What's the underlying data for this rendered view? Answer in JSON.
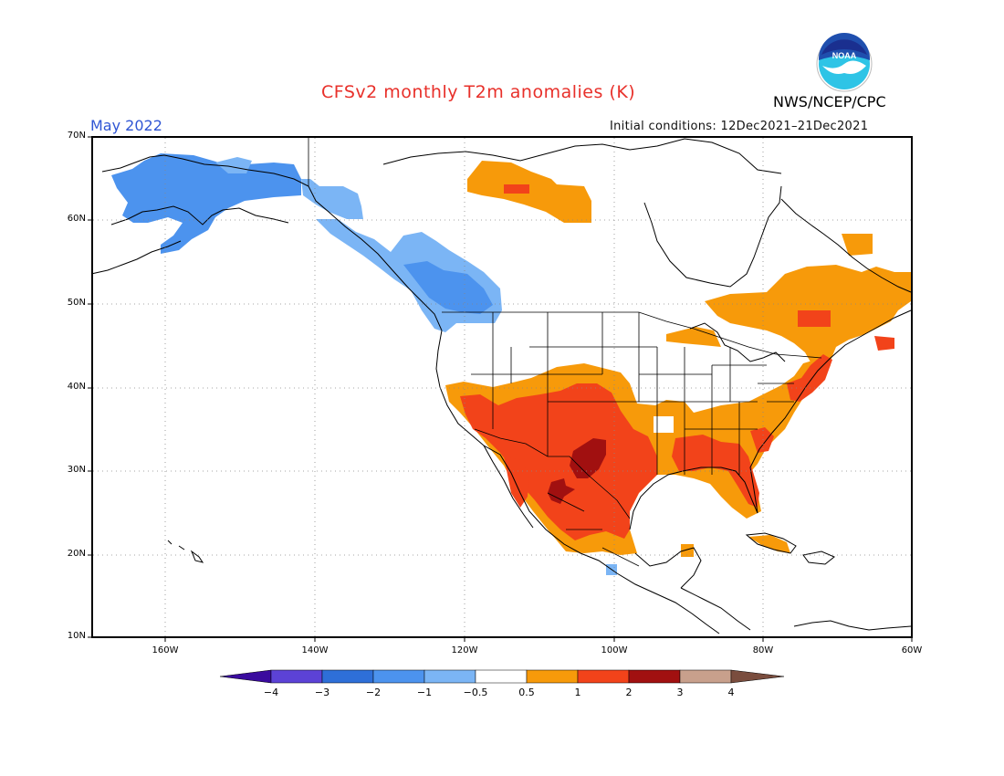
{
  "header": {
    "title": "CFSv2 monthly T2m anomalies (K)",
    "month": "May 2022",
    "init_conditions": "Initial conditions: 12Dec2021–21Dec2021",
    "agency": "NWS/NCEP/CPC",
    "logo_text": "NOAA"
  },
  "map": {
    "lat_labels": [
      "70N",
      "60N",
      "50N",
      "40N",
      "30N",
      "20N",
      "10N"
    ],
    "lon_labels": [
      "160W",
      "140W",
      "120W",
      "100W",
      "80W",
      "60W"
    ],
    "lat_range": [
      10,
      70
    ],
    "lon_range": [
      -170,
      -60
    ]
  },
  "colorbar": {
    "labels": [
      "−4",
      "−3",
      "−2",
      "−1",
      "−0.5",
      "0.5",
      "1",
      "2",
      "3",
      "4"
    ],
    "colors": [
      "#3a0b9e",
      "#5c42d6",
      "#2e6fd8",
      "#4c93ee",
      "#7bb5f5",
      "#ffffff",
      "#f79a0a",
      "#f2431a",
      "#a11010",
      "#c8a08c",
      "#7a4d3e"
    ]
  },
  "anomaly_regions": [
    {
      "name": "Alaska",
      "level": "-1 to -2 K",
      "color": "#4c93ee"
    },
    {
      "name": "British Columbia / Pacific Northwest",
      "level": "-0.5 to -1 K",
      "color": "#7bb5f5"
    },
    {
      "name": "Southwest US / Texas / Mexico",
      "level": "1 to 2 K",
      "color": "#f2431a"
    },
    {
      "name": "West Texas / Northern Mexico core",
      "level": "2 to 3 K",
      "color": "#a11010"
    },
    {
      "name": "Southeast US / Mid-Atlantic",
      "level": "0.5 to 2 K",
      "color": "#f79a0a"
    },
    {
      "name": "Eastern Canada",
      "level": "0.5 to 1 K",
      "color": "#f79a0a"
    },
    {
      "name": "Northwest Territories",
      "level": "0.5 to 1 K",
      "color": "#f79a0a"
    }
  ]
}
